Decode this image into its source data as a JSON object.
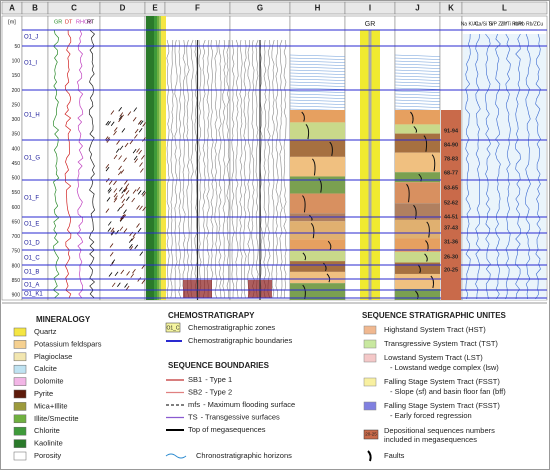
{
  "columns": [
    "A",
    "B",
    "C",
    "D",
    "E",
    "F",
    "G",
    "H",
    "I",
    "J",
    "K",
    "L"
  ],
  "depth_unit": "[m]",
  "depth_ticks": [
    50,
    100,
    150,
    200,
    250,
    300,
    350,
    400,
    450,
    500,
    550,
    600,
    650,
    700,
    750,
    800,
    850,
    900
  ],
  "zones": [
    "O1_J",
    "O1_I",
    "O1_H",
    "O1_G",
    "O1_F",
    "O1_E",
    "O1_D",
    "O1_C",
    "O1_B",
    "O1_A",
    "O1_K1"
  ],
  "log_headers": [
    "GR",
    "DT",
    "RHOB",
    "RT"
  ],
  "gr_header": "GR",
  "sequence_numbers": [
    "91-94",
    "84-90",
    "78-83",
    "68-77",
    "63-65",
    "52-62",
    "44-51",
    "37-43",
    "31-36",
    "26-30",
    "20-25"
  ],
  "element_headers": [
    "Na K/AL",
    "Ca/Si Si",
    "Ti/P Zr/Y",
    "Zr/Ti Rb/K",
    "K/Rb Rb/Zr",
    "Cu"
  ],
  "legend": {
    "mineralogy": {
      "title": "MINERALOGY",
      "items": [
        "Quartz",
        "Potassium feldspars",
        "Plagioclase",
        "Calcite",
        "Dolomite",
        "Pyrite",
        "Mica+Illite",
        "Illite/Smectite",
        "Chlorite",
        "Kaolinite",
        "Porosity"
      ]
    },
    "chemostratigraphy": {
      "title": "CHEMOSTRATIGRAPY",
      "zone_example": "O1_C",
      "items": [
        "Chemostratigraphic zones",
        "Chemostratigraphic boundaries"
      ]
    },
    "sequence_boundaries": {
      "title": "SEQUENCE BOUNDARIES",
      "items": [
        {
          "code": "SB1",
          "text": "- Type 1"
        },
        {
          "code": "SB2",
          "text": "- Type 2"
        },
        {
          "code": "mfs",
          "text": "- Maximum flooding surface"
        },
        {
          "code": "TS",
          "text": "- Transgessive surfaces"
        },
        {
          "code": "",
          "text": "Top of megasequences"
        }
      ]
    },
    "chronostratigraphic": "Chronostratigraphic horizons",
    "sequence_units": {
      "title": "SEQUENCE STRATIGRAPHIC UNITES",
      "items": [
        {
          "label": "Highstand System Tract (HST)",
          "sub": null
        },
        {
          "label": "Transgressive System Tract (TST)",
          "sub": null
        },
        {
          "label": "Lowstand System Tract (LST)",
          "sub": "- Lowstand wedge complex (lsw)"
        },
        {
          "label": "Falling Stage System Tract (FSST)",
          "sub": "- Slope (sf) and basin floor fan (bff)"
        },
        {
          "label": "Falling Stage System Tract (FSST)",
          "sub": "- Early forced regression"
        }
      ],
      "seq_example": "20-25",
      "seq_text": [
        "Depositional sequences numbers",
        "included in megasequences"
      ],
      "faults": "Faults"
    }
  }
}
